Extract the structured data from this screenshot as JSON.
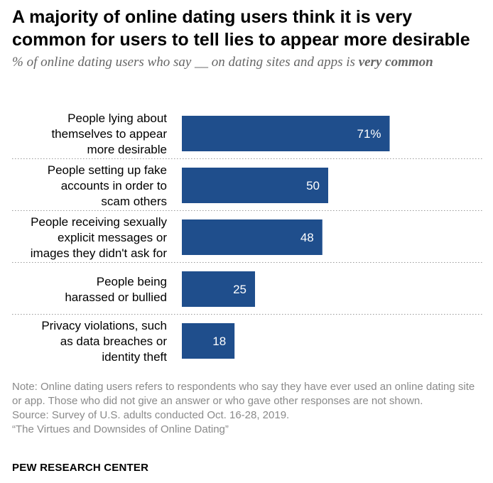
{
  "title": "A majority of online dating users think it is very common for users to tell lies to appear more desirable",
  "subtitle": {
    "prefix": "% of online dating users who say __ on dating sites and apps is ",
    "emphasis": "very common"
  },
  "chart_data": {
    "type": "bar",
    "orientation": "horizontal",
    "categories": [
      [
        "People lying about",
        "themselves to appear",
        "more desirable"
      ],
      [
        "People setting up fake",
        "accounts in order to",
        "scam others"
      ],
      [
        "People receiving sexually",
        "explicit messages or",
        "images they didn't ask for"
      ],
      [
        "People being",
        "harassed or bullied"
      ],
      [
        "Privacy violations, such",
        "as data breaches or",
        "identity theft"
      ]
    ],
    "values": [
      71,
      50,
      48,
      25,
      18
    ],
    "data_labels": [
      "71%",
      "50",
      "48",
      "25",
      "18"
    ],
    "bar_color": "#1f4e8c",
    "xlim": [
      0,
      100
    ],
    "grid": false
  },
  "notes": {
    "note": "Note: Online dating users refers to respondents who say they have ever used an online dating site or app. Those who did not give an answer or who gave other responses are not shown.",
    "source": "Source: Survey of U.S. adults conducted Oct. 16-28, 2019.",
    "report": "“The Virtues and Downsides of Online Dating”"
  },
  "brand": "PEW RESEARCH CENTER"
}
